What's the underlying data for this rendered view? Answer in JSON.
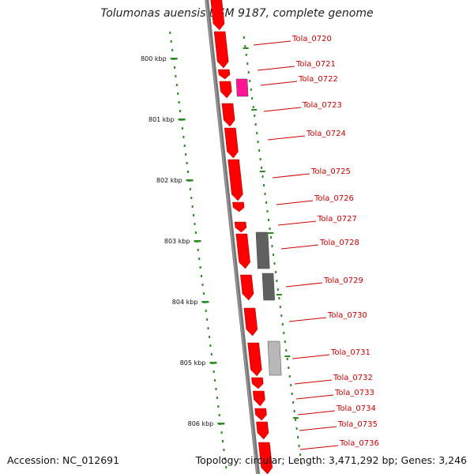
{
  "title": "Tolumonas auensis DSM 9187, complete genome",
  "accession_label": "Accession: NC_012691",
  "topology_label": "Topology: circular; Length: 3,471,292 bp; Genes: 3,246",
  "colors": {
    "backbone": "#777777",
    "gene_forward": "#ff0000",
    "gene_other": "#ff1493",
    "gene_dark": "#606060",
    "gene_light": "#b8b8b8",
    "tick": "#2e8b22",
    "label": "#cc0000"
  },
  "scale_ticks": [
    {
      "label": "800 kbp"
    },
    {
      "label": "801 kbp"
    },
    {
      "label": "802 kbp"
    },
    {
      "label": "803 kbp"
    },
    {
      "label": "804 kbp"
    },
    {
      "label": "805 kbp"
    },
    {
      "label": "806 kbp"
    }
  ],
  "gene_labels": [
    {
      "text": "Tola_0720"
    },
    {
      "text": "Tola_0721"
    },
    {
      "text": "Tola_0722"
    },
    {
      "text": "Tola_0723"
    },
    {
      "text": "Tola_0724"
    },
    {
      "text": "Tola_0725"
    },
    {
      "text": "Tola_0726"
    },
    {
      "text": "Tola_0727"
    },
    {
      "text": "Tola_0728"
    },
    {
      "text": "Tola_0729"
    },
    {
      "text": "Tola_0730"
    },
    {
      "text": "Tola_0731"
    },
    {
      "text": "Tola_0732"
    },
    {
      "text": "Tola_0733"
    },
    {
      "text": "Tola_0734"
    },
    {
      "text": "Tola_0735"
    },
    {
      "text": "Tola_0736"
    }
  ]
}
